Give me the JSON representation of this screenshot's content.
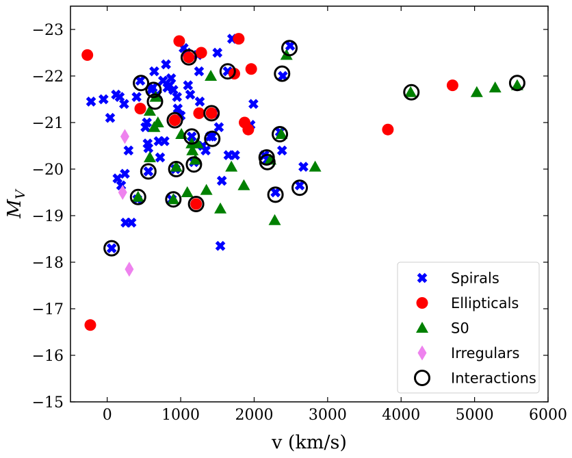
{
  "chart_data": {
    "type": "scatter",
    "title": "",
    "xlabel": "v (km/s)",
    "ylabel": "M_V",
    "xlim": [
      -500,
      6000
    ],
    "ylim": [
      -15,
      -23.5
    ],
    "y_inverted": true,
    "xticks": [
      0,
      1000,
      2000,
      3000,
      4000,
      5000,
      6000
    ],
    "yticks": [
      -23,
      -22,
      -21,
      -20,
      -19,
      -18,
      -17,
      -16,
      -15
    ],
    "legend_position": "bottom-right",
    "series": [
      {
        "name": "Spirals",
        "marker": "x",
        "color": "#0000ff",
        "points": [
          [
            -220,
            -21.45
          ],
          [
            -50,
            -21.5
          ],
          [
            40,
            -21.1
          ],
          [
            120,
            -21.6
          ],
          [
            170,
            -21.55
          ],
          [
            230,
            -21.4
          ],
          [
            290,
            -20.4
          ],
          [
            140,
            -19.8
          ],
          [
            190,
            -19.65
          ],
          [
            240,
            -19.9
          ],
          [
            250,
            -18.85
          ],
          [
            330,
            -18.85
          ],
          [
            60,
            -18.3
          ],
          [
            400,
            -21.55
          ],
          [
            450,
            -21.9
          ],
          [
            520,
            -20.9
          ],
          [
            540,
            -21.0
          ],
          [
            550,
            -20.55
          ],
          [
            560,
            -20.45
          ],
          [
            600,
            -21.7
          ],
          [
            620,
            -21.75
          ],
          [
            640,
            -22.1
          ],
          [
            680,
            -21.6
          ],
          [
            700,
            -20.6
          ],
          [
            720,
            -20.25
          ],
          [
            760,
            -21.9
          ],
          [
            780,
            -20.6
          ],
          [
            800,
            -22.25
          ],
          [
            820,
            -21.75
          ],
          [
            850,
            -21.8
          ],
          [
            870,
            -21.95
          ],
          [
            900,
            -21.7
          ],
          [
            950,
            -21.55
          ],
          [
            960,
            -21.3
          ],
          [
            1000,
            -21.15
          ],
          [
            1040,
            -22.6
          ],
          [
            1080,
            -22.5
          ],
          [
            1100,
            -21.8
          ],
          [
            1130,
            -21.6
          ],
          [
            1150,
            -20.7
          ],
          [
            1230,
            -22.45
          ],
          [
            1250,
            -22.1
          ],
          [
            1260,
            -21.45
          ],
          [
            1300,
            -20.5
          ],
          [
            1340,
            -20.4
          ],
          [
            1400,
            -20.7
          ],
          [
            1450,
            -21.2
          ],
          [
            1500,
            -22.5
          ],
          [
            1520,
            -20.9
          ],
          [
            1560,
            -19.75
          ],
          [
            1540,
            -18.35
          ],
          [
            1650,
            -20.3
          ],
          [
            1700,
            -22.8
          ],
          [
            1740,
            -20.3
          ],
          [
            1950,
            -20.95
          ],
          [
            1990,
            -21.4
          ],
          [
            2140,
            -20.3
          ],
          [
            2180,
            -20.2
          ],
          [
            2290,
            -19.5
          ],
          [
            2380,
            -20.4
          ],
          [
            2390,
            -22.0
          ],
          [
            2670,
            -20.05
          ],
          [
            2490,
            -22.65
          ],
          [
            2620,
            -19.65
          ],
          [
            410,
            -19.35
          ],
          [
            1180,
            -20.15
          ],
          [
            930,
            -20.0
          ],
          [
            560,
            -19.95
          ],
          [
            880,
            -19.35
          ],
          [
            1640,
            -22.1
          ],
          [
            2350,
            -20.8
          ],
          [
            1430,
            -20.7
          ]
        ]
      },
      {
        "name": "Ellipticals",
        "marker": "o",
        "color": "#ff0000",
        "points": [
          [
            -270,
            -22.45
          ],
          [
            -230,
            -16.65
          ],
          [
            450,
            -21.3
          ],
          [
            920,
            -21.05
          ],
          [
            980,
            -22.75
          ],
          [
            1110,
            -22.4
          ],
          [
            1280,
            -22.5
          ],
          [
            1250,
            -21.2
          ],
          [
            1420,
            -21.2
          ],
          [
            1210,
            -19.25
          ],
          [
            1730,
            -22.05
          ],
          [
            1790,
            -22.8
          ],
          [
            1870,
            -21.0
          ],
          [
            1920,
            -20.85
          ],
          [
            1960,
            -22.15
          ],
          [
            3820,
            -20.85
          ],
          [
            4700,
            -21.8
          ]
        ]
      },
      {
        "name": "S0",
        "marker": "^",
        "color": "#008000",
        "points": [
          [
            420,
            -19.4
          ],
          [
            580,
            -21.25
          ],
          [
            580,
            -20.25
          ],
          [
            640,
            -20.9
          ],
          [
            660,
            -21.55
          ],
          [
            690,
            -21.0
          ],
          [
            900,
            -19.35
          ],
          [
            940,
            -20.05
          ],
          [
            1010,
            -20.75
          ],
          [
            1090,
            -19.5
          ],
          [
            1150,
            -20.55
          ],
          [
            1160,
            -20.4
          ],
          [
            1200,
            -20.2
          ],
          [
            1230,
            -20.55
          ],
          [
            1350,
            -19.55
          ],
          [
            1410,
            -22.0
          ],
          [
            1540,
            -19.15
          ],
          [
            1690,
            -20.05
          ],
          [
            1860,
            -19.65
          ],
          [
            2220,
            -20.2
          ],
          [
            2280,
            -18.9
          ],
          [
            2370,
            -20.75
          ],
          [
            2440,
            -22.45
          ],
          [
            2830,
            -20.05
          ],
          [
            4130,
            -21.65
          ],
          [
            5030,
            -21.65
          ],
          [
            5280,
            -21.75
          ],
          [
            5580,
            -21.8
          ]
        ]
      },
      {
        "name": "Irregulars",
        "marker": "d",
        "color": "#ee82ee",
        "points": [
          [
            240,
            -20.7
          ],
          [
            210,
            -19.5
          ],
          [
            300,
            -17.85
          ]
        ]
      },
      {
        "name": "Interactions",
        "marker": "o-open",
        "color": "#000000",
        "points": [
          [
            60,
            -18.3
          ],
          [
            420,
            -19.4
          ],
          [
            460,
            -21.85
          ],
          [
            560,
            -19.95
          ],
          [
            630,
            -21.7
          ],
          [
            650,
            -21.45
          ],
          [
            920,
            -21.05
          ],
          [
            900,
            -19.35
          ],
          [
            940,
            -20.0
          ],
          [
            1110,
            -22.4
          ],
          [
            1150,
            -20.7
          ],
          [
            1180,
            -20.1
          ],
          [
            1210,
            -19.25
          ],
          [
            1420,
            -21.2
          ],
          [
            1430,
            -20.65
          ],
          [
            1640,
            -22.1
          ],
          [
            2170,
            -20.25
          ],
          [
            2180,
            -20.15
          ],
          [
            2290,
            -19.45
          ],
          [
            2350,
            -20.75
          ],
          [
            2380,
            -22.05
          ],
          [
            2480,
            -22.6
          ],
          [
            2620,
            -19.6
          ],
          [
            4140,
            -21.65
          ],
          [
            5580,
            -21.85
          ]
        ]
      }
    ]
  }
}
